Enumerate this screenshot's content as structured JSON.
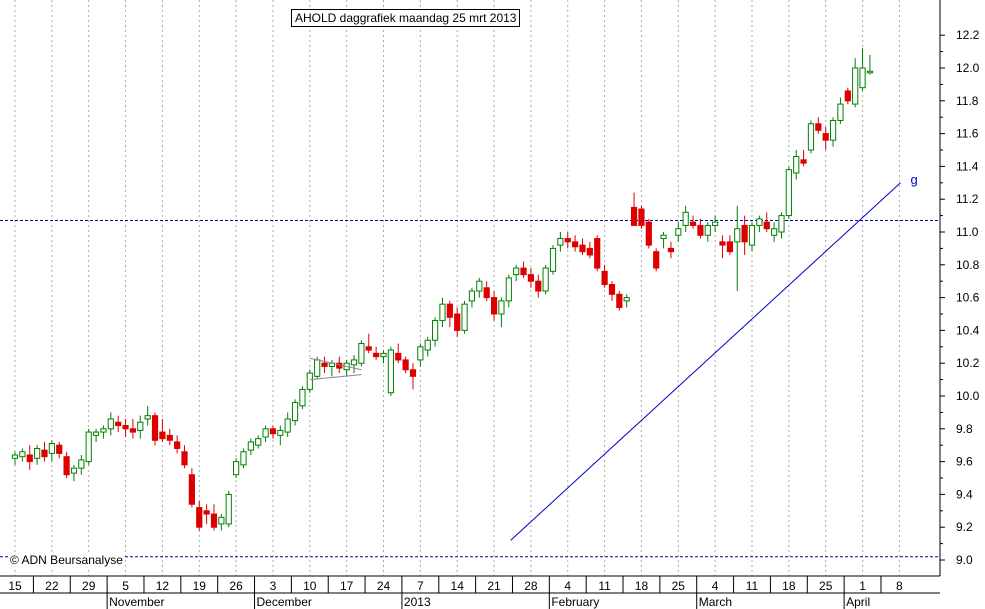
{
  "chart_data": {
    "type": "candlestick",
    "title": "AHOLD daggrafiek maandag 25 mrt 2013",
    "copyright": "© ADN Beursanalyse",
    "ylim": [
      9.0,
      12.3
    ],
    "y_ticks": [
      "9.0",
      "9.2",
      "9.4",
      "9.6",
      "9.8",
      "10.0",
      "10.2",
      "10.4",
      "10.6",
      "10.8",
      "11.0",
      "11.2",
      "11.4",
      "11.6",
      "11.8",
      "12.0",
      "12.2"
    ],
    "x_day_labels": [
      "15",
      "22",
      "29",
      "5",
      "12",
      "19",
      "26",
      "3",
      "10",
      "17",
      "24",
      "7",
      "14",
      "21",
      "28",
      "4",
      "11",
      "18",
      "25",
      "4",
      "11",
      "18",
      "25",
      "1",
      "8"
    ],
    "x_month_labels": [
      "November",
      "December",
      "2013",
      "February",
      "March",
      "April"
    ],
    "month_label_day_index": [
      3,
      7,
      11,
      15,
      19,
      23
    ],
    "horizontal_levels": [
      11.07,
      9.02
    ],
    "trendline": {
      "from": {
        "day": 13.45,
        "value": 9.12
      },
      "to": {
        "day": 24.03,
        "value": 11.3
      },
      "label": "g"
    },
    "colors": {
      "up": "#008000",
      "down": "#dd0000",
      "grid": "#aaaaaa",
      "level": "#0000aa",
      "trendline": "#0000cc",
      "axis": "#000000"
    },
    "candles": [
      [
        0.0,
        9.62,
        9.66,
        9.58,
        9.64
      ],
      [
        0.2,
        9.63,
        9.68,
        9.6,
        9.66
      ],
      [
        0.4,
        9.64,
        9.7,
        9.55,
        9.6
      ],
      [
        0.6,
        9.62,
        9.7,
        9.58,
        9.68
      ],
      [
        0.8,
        9.67,
        9.72,
        9.6,
        9.63
      ],
      [
        1.0,
        9.65,
        9.73,
        9.6,
        9.71
      ],
      [
        1.2,
        9.7,
        9.72,
        9.62,
        9.65
      ],
      [
        1.4,
        9.63,
        9.66,
        9.5,
        9.52
      ],
      [
        1.6,
        9.53,
        9.58,
        9.48,
        9.56
      ],
      [
        1.8,
        9.56,
        9.64,
        9.52,
        9.61
      ],
      [
        2.0,
        9.6,
        9.8,
        9.58,
        9.78
      ],
      [
        2.2,
        9.76,
        9.8,
        9.72,
        9.78
      ],
      [
        2.4,
        9.78,
        9.82,
        9.74,
        9.8
      ],
      [
        2.6,
        9.8,
        9.9,
        9.76,
        9.86
      ],
      [
        2.8,
        9.84,
        9.88,
        9.78,
        9.82
      ],
      [
        3.0,
        9.82,
        9.86,
        9.75,
        9.8
      ],
      [
        3.2,
        9.8,
        9.86,
        9.74,
        9.78
      ],
      [
        3.4,
        9.79,
        9.88,
        9.74,
        9.84
      ],
      [
        3.6,
        9.86,
        9.94,
        9.82,
        9.88
      ],
      [
        3.8,
        9.88,
        9.9,
        9.7,
        9.73
      ],
      [
        4.0,
        9.78,
        9.86,
        9.72,
        9.74
      ],
      [
        4.2,
        9.76,
        9.8,
        9.7,
        9.73
      ],
      [
        4.4,
        9.72,
        9.76,
        9.65,
        9.68
      ],
      [
        4.6,
        9.66,
        9.7,
        9.56,
        9.58
      ],
      [
        4.8,
        9.52,
        9.56,
        9.32,
        9.34
      ],
      [
        5.0,
        9.32,
        9.36,
        9.18,
        9.2
      ],
      [
        5.2,
        9.3,
        9.34,
        9.22,
        9.28
      ],
      [
        5.4,
        9.28,
        9.34,
        9.18,
        9.2
      ],
      [
        5.6,
        9.22,
        9.28,
        9.18,
        9.26
      ],
      [
        5.8,
        9.22,
        9.42,
        9.2,
        9.4
      ],
      [
        6.0,
        9.52,
        9.62,
        9.5,
        9.6
      ],
      [
        6.2,
        9.58,
        9.68,
        9.56,
        9.66
      ],
      [
        6.4,
        9.67,
        9.74,
        9.64,
        9.72
      ],
      [
        6.6,
        9.7,
        9.76,
        9.68,
        9.74
      ],
      [
        6.8,
        9.75,
        9.82,
        9.72,
        9.8
      ],
      [
        7.0,
        9.8,
        9.82,
        9.74,
        9.77
      ],
      [
        7.2,
        9.76,
        9.82,
        9.7,
        9.79
      ],
      [
        7.4,
        9.78,
        9.9,
        9.75,
        9.86
      ],
      [
        7.6,
        9.85,
        9.98,
        9.82,
        9.96
      ],
      [
        7.8,
        9.94,
        10.06,
        9.92,
        10.04
      ],
      [
        8.0,
        10.04,
        10.16,
        10.02,
        10.14
      ],
      [
        8.2,
        10.12,
        10.24,
        10.1,
        10.22
      ],
      [
        8.4,
        10.2,
        10.24,
        10.14,
        10.18
      ],
      [
        8.6,
        10.18,
        10.22,
        10.12,
        10.2
      ],
      [
        8.8,
        10.2,
        10.24,
        10.14,
        10.17
      ],
      [
        9.0,
        10.16,
        10.22,
        10.12,
        10.2
      ],
      [
        9.2,
        10.19,
        10.25,
        10.14,
        10.22
      ],
      [
        9.4,
        10.2,
        10.34,
        10.18,
        10.32
      ],
      [
        9.6,
        10.3,
        10.38,
        10.26,
        10.28
      ],
      [
        9.8,
        10.26,
        10.3,
        10.22,
        10.24
      ],
      [
        10.0,
        10.24,
        10.28,
        10.2,
        10.26
      ],
      [
        10.2,
        10.02,
        10.3,
        10.0,
        10.28
      ],
      [
        10.4,
        10.26,
        10.32,
        10.2,
        10.22
      ],
      [
        10.6,
        10.22,
        10.24,
        10.14,
        10.16
      ],
      [
        10.8,
        10.16,
        10.2,
        10.04,
        10.12
      ],
      [
        11.0,
        10.22,
        10.32,
        10.18,
        10.3
      ],
      [
        11.2,
        10.28,
        10.36,
        10.24,
        10.34
      ],
      [
        11.4,
        10.34,
        10.48,
        10.3,
        10.46
      ],
      [
        11.6,
        10.46,
        10.6,
        10.42,
        10.56
      ],
      [
        11.8,
        10.56,
        10.58,
        10.42,
        10.48
      ],
      [
        12.0,
        10.5,
        10.54,
        10.36,
        10.4
      ],
      [
        12.2,
        10.4,
        10.58,
        10.38,
        10.56
      ],
      [
        12.4,
        10.58,
        10.66,
        10.54,
        10.64
      ],
      [
        12.6,
        10.64,
        10.72,
        10.6,
        10.7
      ],
      [
        12.8,
        10.66,
        10.7,
        10.58,
        10.6
      ],
      [
        13.0,
        10.6,
        10.64,
        10.46,
        10.5
      ],
      [
        13.2,
        10.5,
        10.6,
        10.42,
        10.58
      ],
      [
        13.4,
        10.58,
        10.74,
        10.54,
        10.72
      ],
      [
        13.6,
        10.74,
        10.8,
        10.7,
        10.78
      ],
      [
        13.8,
        10.78,
        10.82,
        10.72,
        10.74
      ],
      [
        14.0,
        10.74,
        10.78,
        10.66,
        10.7
      ],
      [
        14.2,
        10.7,
        10.74,
        10.6,
        10.64
      ],
      [
        14.4,
        10.64,
        10.8,
        10.62,
        10.78
      ],
      [
        14.6,
        10.76,
        10.92,
        10.74,
        10.9
      ],
      [
        14.8,
        10.92,
        11.0,
        10.88,
        10.96
      ],
      [
        15.0,
        10.96,
        11.0,
        10.9,
        10.94
      ],
      [
        15.2,
        10.94,
        10.98,
        10.88,
        10.91
      ],
      [
        15.4,
        10.92,
        10.96,
        10.86,
        10.88
      ],
      [
        15.6,
        10.9,
        10.94,
        10.84,
        10.86
      ],
      [
        15.8,
        10.96,
        10.98,
        10.76,
        10.78
      ],
      [
        16.0,
        10.76,
        10.8,
        10.66,
        10.68
      ],
      [
        16.2,
        10.68,
        10.7,
        10.58,
        10.62
      ],
      [
        16.4,
        10.62,
        10.64,
        10.52,
        10.54
      ],
      [
        16.6,
        10.58,
        10.62,
        10.54,
        10.6
      ],
      [
        16.8,
        11.15,
        11.24,
        11.04,
        11.04
      ],
      [
        17.0,
        11.14,
        11.16,
        11.02,
        11.04
      ],
      [
        17.2,
        11.06,
        11.08,
        10.9,
        10.92
      ],
      [
        17.4,
        10.88,
        10.9,
        10.76,
        10.78
      ],
      [
        17.6,
        10.96,
        11.0,
        10.9,
        10.98
      ],
      [
        17.8,
        10.9,
        10.94,
        10.84,
        10.88
      ],
      [
        18.0,
        10.98,
        11.06,
        10.94,
        11.02
      ],
      [
        18.2,
        11.04,
        11.16,
        11.0,
        11.12
      ],
      [
        18.4,
        11.06,
        11.1,
        11.02,
        11.04
      ],
      [
        18.6,
        11.04,
        11.08,
        10.96,
        10.98
      ],
      [
        18.8,
        10.98,
        11.06,
        10.94,
        11.04
      ],
      [
        19.0,
        11.04,
        11.1,
        11.0,
        11.06
      ],
      [
        19.2,
        10.94,
        10.98,
        10.84,
        10.92
      ],
      [
        19.4,
        10.94,
        10.98,
        10.86,
        10.88
      ],
      [
        19.6,
        10.94,
        11.16,
        10.64,
        11.02
      ],
      [
        19.8,
        11.04,
        11.1,
        10.86,
        10.94
      ],
      [
        20.0,
        10.92,
        11.06,
        10.88,
        11.04
      ],
      [
        20.2,
        11.04,
        11.1,
        11.0,
        11.08
      ],
      [
        20.4,
        11.06,
        11.12,
        11.0,
        11.02
      ],
      [
        20.6,
        10.98,
        11.06,
        10.94,
        11.02
      ],
      [
        20.8,
        11.0,
        11.12,
        10.96,
        11.1
      ],
      [
        21.0,
        11.1,
        11.4,
        11.08,
        11.38
      ],
      [
        21.2,
        11.36,
        11.5,
        11.32,
        11.46
      ],
      [
        21.4,
        11.44,
        11.5,
        11.4,
        11.42
      ],
      [
        21.6,
        11.5,
        11.68,
        11.48,
        11.66
      ],
      [
        21.8,
        11.66,
        11.7,
        11.6,
        11.62
      ],
      [
        22.0,
        11.6,
        11.64,
        11.5,
        11.56
      ],
      [
        22.2,
        11.56,
        11.7,
        11.52,
        11.68
      ],
      [
        22.4,
        11.68,
        11.82,
        11.66,
        11.78
      ],
      [
        22.6,
        11.86,
        11.88,
        11.78,
        11.8
      ],
      [
        22.8,
        11.78,
        12.06,
        11.76,
        12.0
      ],
      [
        23.0,
        11.88,
        12.12,
        11.86,
        12.0
      ],
      [
        23.2,
        11.98,
        12.08,
        11.96,
        11.98
      ]
    ]
  }
}
